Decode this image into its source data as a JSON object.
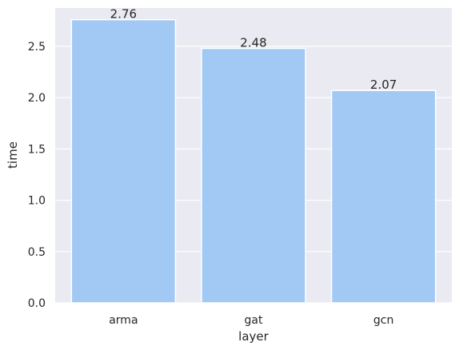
{
  "chart_data": {
    "type": "bar",
    "categories": [
      "arma",
      "gat",
      "gcn"
    ],
    "values": [
      2.76,
      2.48,
      2.07
    ],
    "data_labels": [
      "2.76",
      "2.48",
      "2.07"
    ],
    "title": "",
    "xlabel": "layer",
    "ylabel": "time",
    "ylim": [
      0,
      2.9
    ],
    "yticks": [
      0.0,
      0.5,
      1.0,
      1.5,
      2.0,
      2.5
    ],
    "ytick_labels": [
      "0.0",
      "0.5",
      "1.0",
      "1.5",
      "2.0",
      "2.5"
    ],
    "grid": true,
    "legend": "none",
    "colors": {
      "bar": "#a1c9f4",
      "plot_background": "#eaeaf2",
      "grid": "#ffffff",
      "text": "#262626"
    }
  }
}
